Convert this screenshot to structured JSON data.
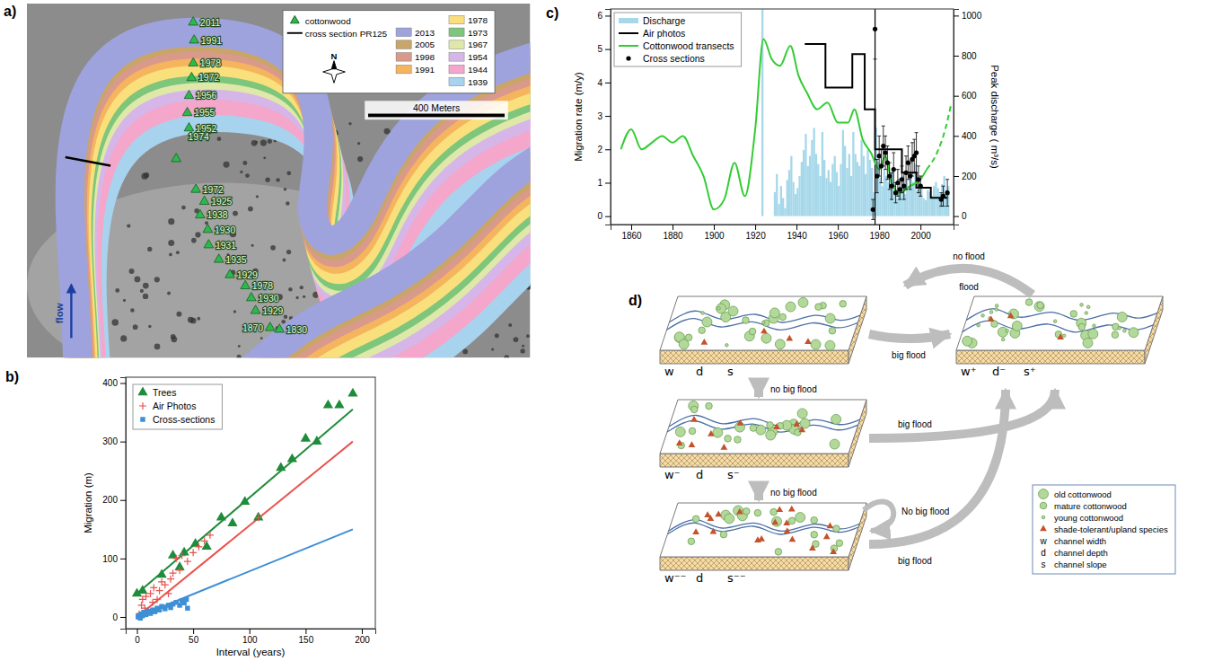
{
  "panel_labels": [
    "a)",
    "b)",
    "c)",
    "d)"
  ],
  "map": {
    "key_cottonwood": "cottonwood",
    "key_cross_section": "cross section PR125",
    "key_years": [
      {
        "label": "2013",
        "color": "#9ea3dd"
      },
      {
        "label": "2005",
        "color": "#c9a56a"
      },
      {
        "label": "1998",
        "color": "#d99a8c"
      },
      {
        "label": "1991",
        "color": "#f5b45e"
      },
      {
        "label": "1978",
        "color": "#f9e07c"
      },
      {
        "label": "1973",
        "color": "#7dc67b"
      },
      {
        "label": "1967",
        "color": "#dfe8a8"
      },
      {
        "label": "1954",
        "color": "#d6b6e8"
      },
      {
        "label": "1944",
        "color": "#f4a6cb"
      },
      {
        "label": "1939",
        "color": "#a8d3ee"
      }
    ],
    "compass": "N",
    "scale_bar": "400 Meters",
    "flow": "flow",
    "trees": [
      "2011",
      "1991",
      "1978",
      "1972",
      "1956",
      "1955",
      "1952",
      "1974",
      "1972",
      "1925",
      "1938",
      "1930",
      "1931",
      "1935",
      "1929",
      "1978",
      "1930",
      "1929",
      "1870",
      "1830"
    ]
  },
  "chart_data": [
    {
      "type": "scatter",
      "x_label": "Interval (years)",
      "y_label": "Migration (m)",
      "xlim": [
        -10,
        212
      ],
      "xticks": [
        0,
        50,
        100,
        150,
        200
      ],
      "ylim": [
        -20,
        410
      ],
      "yticks": [
        0,
        100,
        200,
        300,
        400
      ],
      "legend": "upper left",
      "series": [
        {
          "name": "Trees",
          "color": "#1e8c3a",
          "marker": "triangle",
          "x": [
            0,
            5,
            22,
            32,
            38,
            42,
            52,
            62,
            75,
            85,
            96,
            108,
            128,
            138,
            150,
            160,
            170,
            180,
            192
          ],
          "values": [
            40,
            45,
            72,
            105,
            85,
            110,
            125,
            120,
            170,
            160,
            197,
            170,
            255,
            270,
            305,
            300,
            362,
            362,
            382
          ],
          "fit_x": [
            0,
            192
          ],
          "fit_values": [
            40,
            355
          ]
        },
        {
          "name": "Air Photos",
          "color": "#e8534f",
          "marker": "plus",
          "x": [
            2,
            4,
            5,
            7,
            8,
            10,
            12,
            14,
            15,
            18,
            20,
            22,
            25,
            28,
            30,
            32,
            35,
            38,
            40,
            45,
            50,
            55,
            60,
            65,
            108
          ],
          "values": [
            5,
            20,
            30,
            15,
            35,
            10,
            40,
            25,
            50,
            30,
            45,
            60,
            55,
            40,
            65,
            75,
            100,
            80,
            105,
            95,
            110,
            120,
            130,
            140,
            170
          ],
          "fit_x": [
            0,
            192
          ],
          "fit_values": [
            0,
            300
          ]
        },
        {
          "name": "Cross-sections",
          "color": "#3d8fd6",
          "marker": "square",
          "x": [
            1,
            2,
            3,
            4,
            5,
            6,
            8,
            10,
            12,
            14,
            16,
            18,
            20,
            22,
            25,
            28,
            30,
            32,
            35,
            38,
            40,
            42,
            44,
            45
          ],
          "values": [
            0,
            3,
            -2,
            5,
            2,
            8,
            4,
            10,
            6,
            12,
            9,
            15,
            12,
            18,
            14,
            20,
            16,
            22,
            25,
            20,
            28,
            24,
            30,
            15
          ],
          "fit_x": [
            0,
            192
          ],
          "fit_values": [
            0,
            150
          ]
        }
      ]
    },
    {
      "type": "line",
      "y_label": "Migration rate (m/y)",
      "y2_label": "Peak discharge ( m³/s)",
      "xlim": [
        1850,
        2016
      ],
      "xticks": [
        1860,
        1880,
        1900,
        1920,
        1940,
        1960,
        1980,
        2000
      ],
      "ylim": [
        -0.25,
        6.2
      ],
      "yticks": [
        0,
        1,
        2,
        3,
        4,
        5,
        6
      ],
      "y2lim": [
        -42,
        1033
      ],
      "y2ticks": [
        0,
        200,
        400,
        600,
        800,
        1000
      ],
      "legend": "upper left",
      "vline_x": 1978,
      "series": [
        {
          "name": "Discharge",
          "type": "bar",
          "axis": "y2",
          "color": "#a6d8ea",
          "x": [
            1923,
            1929,
            1930,
            1931,
            1932,
            1933,
            1934,
            1935,
            1936,
            1937,
            1938,
            1939,
            1940,
            1941,
            1942,
            1943,
            1944,
            1945,
            1946,
            1947,
            1948,
            1949,
            1950,
            1951,
            1952,
            1953,
            1954,
            1955,
            1956,
            1957,
            1958,
            1959,
            1960,
            1961,
            1962,
            1963,
            1964,
            1965,
            1966,
            1967,
            1968,
            1969,
            1970,
            1971,
            1972,
            1973,
            1974,
            1975,
            1976,
            1977,
            1978,
            1979,
            1980,
            1981,
            1982,
            1983,
            1984,
            1985,
            1986,
            1987,
            1988,
            1989,
            1990,
            1991,
            1992,
            1993,
            1994,
            1995,
            1996,
            1997,
            1998,
            1999,
            2000,
            2001,
            2002,
            2003,
            2004,
            2005,
            2006,
            2007,
            2008,
            2009,
            2010,
            2011,
            2012,
            2013
          ],
          "values": [
            1030,
            120,
            210,
            60,
            150,
            90,
            40,
            180,
            230,
            300,
            170,
            110,
            140,
            200,
            270,
            330,
            410,
            250,
            300,
            380,
            440,
            310,
            260,
            200,
            420,
            280,
            190,
            230,
            170,
            260,
            300,
            220,
            150,
            260,
            430,
            350,
            240,
            310,
            200,
            420,
            310,
            270,
            250,
            380,
            300,
            210,
            330,
            280,
            240,
            120,
            440,
            270,
            190,
            150,
            230,
            200,
            170,
            130,
            240,
            160,
            90,
            140,
            130,
            200,
            110,
            180,
            150,
            220,
            170,
            260,
            130,
            180,
            160,
            90,
            80,
            130,
            120,
            100,
            150,
            170,
            140,
            110,
            160,
            200,
            130,
            150
          ]
        },
        {
          "name": "Air photos",
          "type": "step",
          "color": "#000000",
          "x": [
            1944,
            1954,
            1967,
            1973,
            1978,
            1991,
            1998,
            2005,
            2013
          ],
          "values": [
            5.15,
            3.85,
            4.85,
            3.2,
            2.0,
            1.3,
            0.85,
            0.55,
            0.55
          ]
        },
        {
          "name": "Cottonwood transects",
          "type": "line",
          "color": "#33cc33",
          "x": [
            1855,
            1860,
            1865,
            1870,
            1875,
            1880,
            1885,
            1890,
            1895,
            1900,
            1905,
            1910,
            1915,
            1920,
            1924,
            1928,
            1932,
            1937,
            1941,
            1945,
            1950,
            1955,
            1960,
            1965,
            1968,
            1972,
            1976,
            1980,
            1983,
            1986,
            1990,
            1995,
            2000,
            2003
          ],
          "values": [
            2.0,
            2.6,
            2.0,
            2.2,
            2.4,
            2.2,
            2.4,
            1.8,
            1.2,
            0.2,
            0.5,
            1.6,
            0.6,
            2.6,
            5.3,
            4.7,
            4.5,
            5.1,
            4.2,
            3.7,
            3.2,
            3.4,
            2.8,
            2.8,
            3.2,
            2.3,
            1.9,
            1.4,
            1.8,
            1.0,
            0.7,
            0.9,
            1.1,
            1.4
          ]
        },
        {
          "type": "line",
          "line_style": "dashed",
          "color": "#33cc33",
          "x": [
            2003,
            2008,
            2012,
            2015
          ],
          "values": [
            1.4,
            1.9,
            2.6,
            3.4
          ]
        },
        {
          "name": "Cross sections",
          "type": "scatter",
          "marker": "circle",
          "color": "#000000",
          "x": [
            1977,
            1978,
            1979,
            1980,
            1981,
            1982,
            1983,
            1984,
            1985,
            1986,
            1987,
            1988,
            1989,
            1990,
            1991,
            1992,
            1993,
            1994,
            1995,
            1996,
            1997,
            1998,
            1999,
            2000,
            2010,
            2011,
            2013
          ],
          "values": [
            0.2,
            5.6,
            1.2,
            1.8,
            1.5,
            2.1,
            1.9,
            1.6,
            1.2,
            0.9,
            1.4,
            0.7,
            1.0,
            0.8,
            1.1,
            0.9,
            1.3,
            1.6,
            1.2,
            1.7,
            1.8,
            1.9,
            1.1,
            0.9,
            0.5,
            0.6,
            0.7
          ],
          "errors": [
            0.3,
            0.9,
            0.5,
            0.6,
            0.5,
            0.6,
            0.5,
            0.5,
            0.4,
            0.4,
            0.5,
            0.3,
            0.4,
            0.3,
            0.4,
            0.4,
            0.5,
            0.5,
            0.4,
            0.5,
            0.5,
            0.6,
            0.4,
            0.3,
            0.2,
            0.3,
            0.4
          ]
        }
      ]
    }
  ],
  "diagram": {
    "states": [
      {
        "labels": [
          "w",
          "d",
          "s"
        ]
      },
      {
        "labels": [
          "w⁻",
          "d",
          "s⁻"
        ]
      },
      {
        "labels": [
          "w⁻⁻",
          "d",
          "s⁻⁻"
        ]
      },
      {
        "labels": [
          "w⁺",
          "d⁻",
          "s⁺"
        ]
      }
    ],
    "transitions": [
      {
        "from": 0,
        "to": 1,
        "label": "no big flood"
      },
      {
        "from": 1,
        "to": 2,
        "label": "no big flood"
      },
      {
        "from": 0,
        "to": 3,
        "label": "big flood"
      },
      {
        "from": 1,
        "to": 3,
        "label": "big flood"
      },
      {
        "from": 2,
        "to": 3,
        "label": "big flood"
      },
      {
        "from": 2,
        "to": 2,
        "label": "No big flood"
      },
      {
        "from": 3,
        "to": 3,
        "label": "no flood"
      },
      {
        "from": 3,
        "to": 3,
        "label": "flood"
      }
    ],
    "legend": [
      {
        "marker": "circle-large",
        "label": "old cottonwood"
      },
      {
        "marker": "circle-medium",
        "label": "mature cottonwood"
      },
      {
        "marker": "circle-small",
        "label": "young cottonwood"
      },
      {
        "marker": "triangle",
        "label": "shade-tolerant/upland species"
      },
      {
        "symbol": "w",
        "label": "channel width"
      },
      {
        "symbol": "d",
        "label": "channel depth"
      },
      {
        "symbol": "s",
        "label": "channel slope"
      }
    ]
  }
}
